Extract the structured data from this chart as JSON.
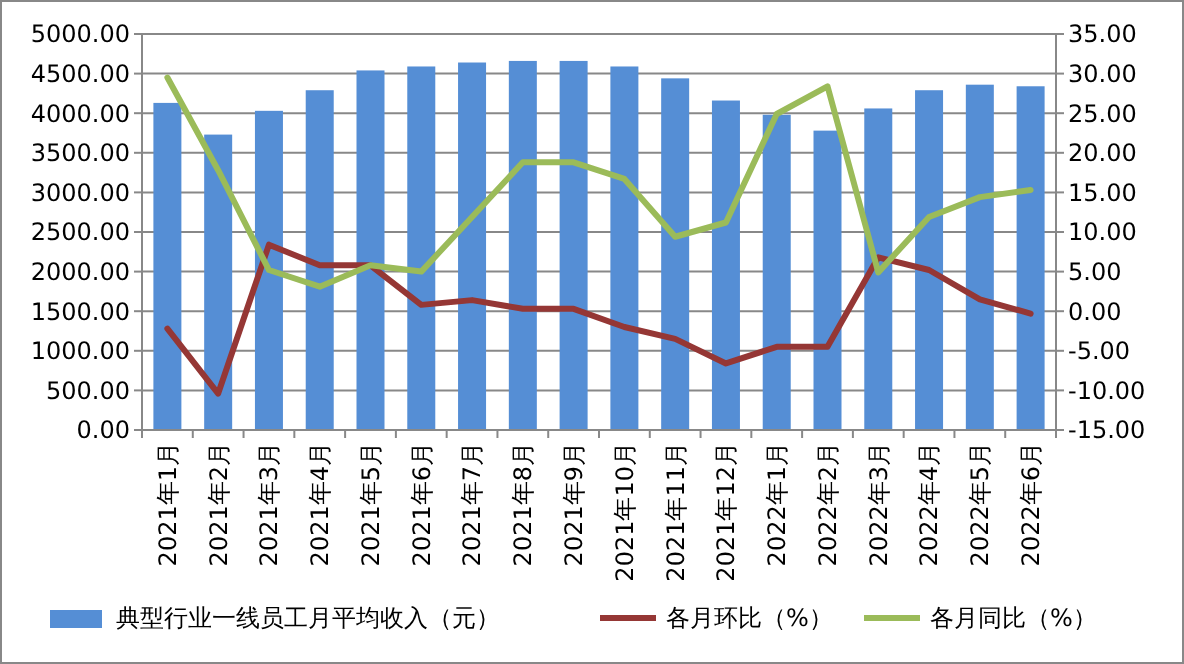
{
  "chart_data": {
    "type": "bar",
    "categories": [
      "2021年1月",
      "2021年2月",
      "2021年3月",
      "2021年4月",
      "2021年5月",
      "2021年6月",
      "2021年7月",
      "2021年8月",
      "2021年9月",
      "2021年10月",
      "2021年11月",
      "2021年12月",
      "2022年1月",
      "2022年2月",
      "2022年3月",
      "2022年4月",
      "2022年5月",
      "2022年6月"
    ],
    "series": [
      {
        "name": "典型行业一线员工月平均收入（元）",
        "color": "#558ed5",
        "values": [
          4130,
          3730,
          4030,
          4290,
          4540,
          4590,
          4640,
          4660,
          4660,
          4590,
          4440,
          4160,
          3980,
          3780,
          4060,
          4290,
          4360,
          4340
        ]
      },
      {
        "name": "各月环比（%）",
        "type": "line",
        "axis": "y2",
        "color": "#953735",
        "values": [
          -2.2,
          -10.4,
          8.4,
          5.8,
          5.8,
          0.8,
          1.4,
          0.3,
          0.3,
          -2.0,
          -3.5,
          -6.6,
          -4.5,
          -4.5,
          6.8,
          5.2,
          1.5,
          -0.3
        ]
      },
      {
        "name": "各月同比（%）",
        "type": "line",
        "axis": "y2",
        "color": "#9bbb59",
        "values": [
          29.5,
          17.8,
          5.2,
          3.1,
          5.8,
          5.0,
          11.9,
          18.8,
          18.8,
          16.7,
          9.4,
          11.2,
          24.9,
          28.4,
          4.9,
          11.9,
          14.4,
          15.3
        ]
      }
    ],
    "ylim": [
      0,
      5000
    ],
    "yticks": [
      {
        "value": 0,
        "label": "0.00"
      },
      {
        "value": 500,
        "label": "500.00"
      },
      {
        "value": 1000,
        "label": "1000.00"
      },
      {
        "value": 1500,
        "label": "1500.00"
      },
      {
        "value": 2000,
        "label": "2000.00"
      },
      {
        "value": 2500,
        "label": "2500.00"
      },
      {
        "value": 3000,
        "label": "3000.00"
      },
      {
        "value": 3500,
        "label": "3500.00"
      },
      {
        "value": 4000,
        "label": "4000.00"
      },
      {
        "value": 4500,
        "label": "4500.00"
      },
      {
        "value": 5000,
        "label": "5000.00"
      }
    ],
    "y2lim": [
      -15,
      35
    ],
    "y2ticks": [
      {
        "value": -15,
        "label": "-15.00"
      },
      {
        "value": -10,
        "label": "-10.00"
      },
      {
        "value": -5,
        "label": "-5.00"
      },
      {
        "value": 0,
        "label": "0.00"
      },
      {
        "value": 5,
        "label": "5.00"
      },
      {
        "value": 10,
        "label": "10.00"
      },
      {
        "value": 15,
        "label": "15.00"
      },
      {
        "value": 20,
        "label": "20.00"
      },
      {
        "value": 25,
        "label": "25.00"
      },
      {
        "value": 30,
        "label": "30.00"
      },
      {
        "value": 35,
        "label": "35.00"
      }
    ],
    "grid": "y",
    "legend": "bottom",
    "marker": "none",
    "line_style": "solid"
  }
}
